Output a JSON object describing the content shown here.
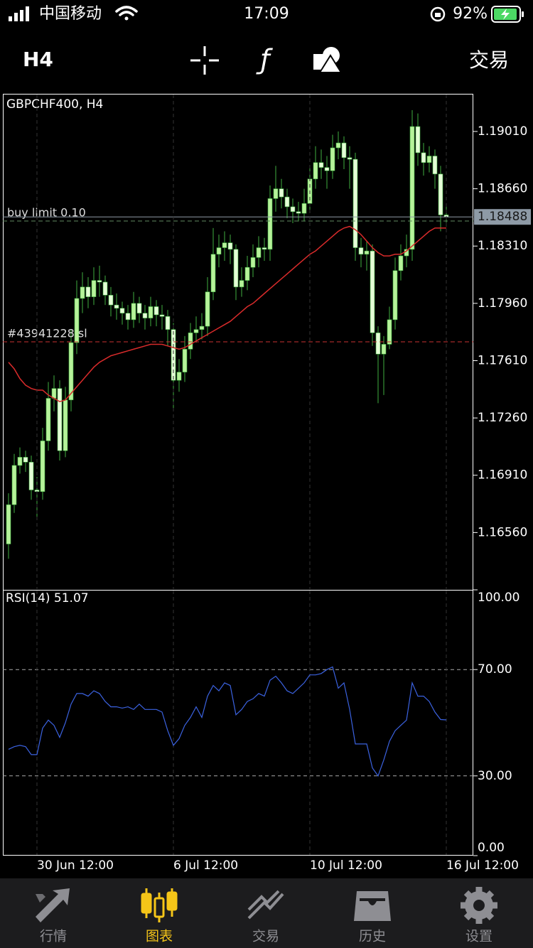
{
  "status_bar": {
    "carrier": "中国移动",
    "time": "17:09",
    "battery": "92%"
  },
  "toolbar": {
    "timeframe": "H4",
    "trade": "交易"
  },
  "tabs": [
    "行情",
    "图表",
    "交易",
    "历史",
    "设置"
  ],
  "chart_data": [
    {
      "type": "candlestick",
      "title": "GBPCHF400, H4",
      "up_color": "#b6f29a",
      "down_color": "#e4ffd6",
      "wick_color": "#3fae3f",
      "open": [
        1.1649,
        1.1673,
        1.1697,
        1.1702,
        1.1699,
        1.1682,
        1.1681,
        1.1712,
        1.1738,
        1.1744,
        1.1706,
        1.1737,
        1.1772,
        1.1799,
        1.1806,
        1.18,
        1.181,
        1.1809,
        1.1801,
        1.1795,
        1.1793,
        1.179,
        1.1786,
        1.1796,
        1.179,
        1.1787,
        1.1794,
        1.1789,
        1.1788,
        1.178,
        1.1749,
        1.1754,
        1.1768,
        1.1778,
        1.178,
        1.1782,
        1.1803,
        1.1826,
        1.183,
        1.1833,
        1.1829,
        1.1806,
        1.181,
        1.1818,
        1.1824,
        1.183,
        1.1829,
        1.186,
        1.1866,
        1.1861,
        1.1855,
        1.1852,
        1.1851,
        1.1857,
        1.1872,
        1.1882,
        1.1879,
        1.1877,
        1.1891,
        1.1894,
        1.1885,
        1.1884,
        1.183,
        1.1826,
        1.1828,
        1.1778,
        1.1765,
        1.1771,
        1.1786,
        1.1816,
        1.1825,
        1.1829,
        1.1904,
        1.1888,
        1.1882,
        1.1886,
        1.1875,
        1.185
      ],
      "high": [
        1.168,
        1.1704,
        1.1708,
        1.1706,
        1.1703,
        1.169,
        1.172,
        1.1748,
        1.1752,
        1.1749,
        1.1745,
        1.178,
        1.181,
        1.1815,
        1.1812,
        1.1818,
        1.1819,
        1.1813,
        1.1806,
        1.1802,
        1.1797,
        1.1795,
        1.1803,
        1.18,
        1.1795,
        1.18,
        1.1798,
        1.1795,
        1.1792,
        1.1784,
        1.1762,
        1.1776,
        1.1784,
        1.1788,
        1.179,
        1.1812,
        1.1842,
        1.1838,
        1.184,
        1.1838,
        1.1832,
        1.1818,
        1.1825,
        1.1832,
        1.1837,
        1.1836,
        1.1868,
        1.188,
        1.1872,
        1.1866,
        1.186,
        1.1858,
        1.1866,
        1.188,
        1.1892,
        1.189,
        1.1886,
        1.1899,
        1.1901,
        1.1898,
        1.1892,
        1.1888,
        1.1836,
        1.1834,
        1.1832,
        1.1782,
        1.1776,
        1.1794,
        1.1824,
        1.1832,
        1.1838,
        1.1914,
        1.1912,
        1.1894,
        1.1892,
        1.189,
        1.188,
        1.1856
      ],
      "low": [
        1.164,
        1.1668,
        1.1692,
        1.1693,
        1.1676,
        1.1665,
        1.1676,
        1.1706,
        1.173,
        1.17,
        1.1702,
        1.173,
        1.1765,
        1.179,
        1.1793,
        1.1795,
        1.18,
        1.1795,
        1.1788,
        1.1786,
        1.1783,
        1.178,
        1.1781,
        1.1784,
        1.178,
        1.1782,
        1.1782,
        1.178,
        1.177,
        1.173,
        1.1742,
        1.1748,
        1.1762,
        1.1772,
        1.1774,
        1.1776,
        1.1798,
        1.1818,
        1.1822,
        1.182,
        1.1798,
        1.18,
        1.1804,
        1.1812,
        1.1818,
        1.1822,
        1.1822,
        1.1852,
        1.1854,
        1.1848,
        1.1845,
        1.1846,
        1.1846,
        1.1852,
        1.1866,
        1.1872,
        1.1866,
        1.1872,
        1.1884,
        1.1878,
        1.1866,
        1.1822,
        1.1818,
        1.1816,
        1.177,
        1.1735,
        1.174,
        1.1768,
        1.178,
        1.181,
        1.1818,
        1.1822,
        1.188,
        1.1874,
        1.1876,
        1.1866,
        1.184,
        1.1843
      ],
      "close": [
        1.1673,
        1.1697,
        1.1702,
        1.1699,
        1.1682,
        1.1681,
        1.1712,
        1.1738,
        1.1744,
        1.1706,
        1.1737,
        1.1772,
        1.1799,
        1.1806,
        1.18,
        1.181,
        1.1809,
        1.1801,
        1.1795,
        1.1793,
        1.179,
        1.1786,
        1.1796,
        1.179,
        1.1787,
        1.1794,
        1.1789,
        1.1788,
        1.178,
        1.1749,
        1.1754,
        1.1768,
        1.1778,
        1.178,
        1.1782,
        1.1803,
        1.1826,
        1.183,
        1.1833,
        1.1829,
        1.1806,
        1.181,
        1.1818,
        1.1824,
        1.183,
        1.1829,
        1.186,
        1.1866,
        1.1861,
        1.1855,
        1.1852,
        1.1851,
        1.1857,
        1.1872,
        1.1882,
        1.1879,
        1.1877,
        1.1891,
        1.1894,
        1.1885,
        1.1884,
        1.183,
        1.1826,
        1.1828,
        1.1778,
        1.1765,
        1.1771,
        1.1786,
        1.1816,
        1.1825,
        1.1829,
        1.1904,
        1.1888,
        1.1882,
        1.1886,
        1.1875,
        1.185,
        1.18488
      ],
      "ma": {
        "color": "#d92b2b",
        "values": [
          1.176,
          1.1756,
          1.175,
          1.1746,
          1.1744,
          1.1743,
          1.1743,
          1.174,
          1.1738,
          1.1736,
          1.1737,
          1.1741,
          1.1745,
          1.1749,
          1.1753,
          1.1757,
          1.176,
          1.1762,
          1.1764,
          1.1765,
          1.1766,
          1.1767,
          1.1768,
          1.1769,
          1.177,
          1.1771,
          1.1771,
          1.1771,
          1.177,
          1.1769,
          1.1768,
          1.1769,
          1.1771,
          1.1773,
          1.1775,
          1.1777,
          1.1779,
          1.1781,
          1.1783,
          1.1785,
          1.1788,
          1.1791,
          1.1794,
          1.1796,
          1.1799,
          1.1802,
          1.1805,
          1.1808,
          1.1811,
          1.1814,
          1.1817,
          1.182,
          1.1823,
          1.1826,
          1.1828,
          1.1831,
          1.1834,
          1.1837,
          1.184,
          1.1842,
          1.1843,
          1.1841,
          1.1838,
          1.1834,
          1.183,
          1.1827,
          1.1825,
          1.1825,
          1.1826,
          1.1826,
          1.1828,
          1.1831,
          1.1834,
          1.1837,
          1.184,
          1.1842,
          1.1842,
          1.1842
        ]
      },
      "price_line": {
        "value": 1.18488,
        "color": "#8e9aa6"
      },
      "orders": [
        {
          "label": "buy limit 0.10",
          "value": 1.18463,
          "color": "#5f8a5f"
        },
        {
          "label": "#43941228 sl",
          "value": 1.17725,
          "color": "#c83232"
        }
      ],
      "xlim": [
        -1,
        81.75
      ],
      "ylim": [
        1.1621,
        1.1924
      ],
      "yticks": [
        {
          "value": 1.1901,
          "label": "1.19010"
        },
        {
          "value": 1.1866,
          "label": "1.18660"
        },
        {
          "value": 1.1831,
          "label": "1.18310"
        },
        {
          "value": 1.1796,
          "label": "1.17960"
        },
        {
          "value": 1.1761,
          "label": "1.17610"
        },
        {
          "value": 1.1726,
          "label": "1.17260"
        },
        {
          "value": 1.1691,
          "label": "1.16910"
        },
        {
          "value": 1.1656,
          "label": "1.16560"
        }
      ]
    },
    {
      "type": "line",
      "title": "RSI(14) 51.07",
      "series": [
        {
          "color": "#3b62e0",
          "values": [
            40,
            41,
            41.5,
            41,
            38,
            38,
            48,
            51,
            49,
            44.5,
            50,
            57,
            61,
            61,
            60,
            62,
            61,
            58,
            56,
            56,
            55.5,
            56,
            55,
            57,
            55,
            55,
            55,
            54,
            47,
            41.5,
            44,
            49,
            52,
            56,
            52,
            60,
            64,
            62,
            65,
            64,
            53,
            55,
            58,
            59,
            61,
            60,
            66,
            67.5,
            65,
            62,
            61,
            63,
            65,
            68,
            68,
            68.5,
            70,
            71,
            63,
            65,
            55,
            42,
            42,
            42,
            33,
            30,
            36,
            43,
            47,
            49,
            51,
            65,
            60,
            60,
            58,
            54,
            51.2,
            51.07
          ]
        }
      ],
      "xlim": [
        -1,
        81.75
      ],
      "ylim": [
        0,
        100
      ],
      "yticks": [
        {
          "value": 100,
          "label": "100.00"
        },
        {
          "value": 70,
          "label": "70.00"
        },
        {
          "value": 30,
          "label": "30.00"
        },
        {
          "value": 0,
          "label": "0.00"
        }
      ],
      "xticks": [
        {
          "value": 5,
          "label": "30 Jun 12:00"
        },
        {
          "value": 29,
          "label": "6 Jul 12:00"
        },
        {
          "value": 53,
          "label": "10 Jul 12:00"
        },
        {
          "value": 77,
          "label": "16 Jul 12:00"
        }
      ]
    }
  ]
}
